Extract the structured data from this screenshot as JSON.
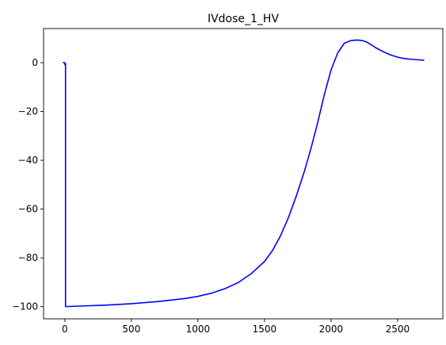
{
  "chart_data": {
    "type": "line",
    "title": "IVdose_1_HV",
    "xlabel": "",
    "ylabel": "",
    "xlim": [
      -160,
      2840
    ],
    "ylim": [
      -105,
      14
    ],
    "xticks": [
      0,
      500,
      1000,
      1500,
      2000,
      2500
    ],
    "yticks": [
      0,
      -20,
      -40,
      -60,
      -80,
      -100
    ],
    "grid": false,
    "series": [
      {
        "color": "#0000ff",
        "x": [
          -15,
          0,
          0,
          5,
          5,
          100,
          300,
          500,
          700,
          900,
          1000,
          1100,
          1200,
          1300,
          1400,
          1500,
          1560,
          1620,
          1680,
          1740,
          1800,
          1850,
          1900,
          1950,
          2000,
          2050,
          2100,
          2150,
          2200,
          2240,
          2270,
          2300,
          2340,
          2400,
          2450,
          2500,
          2550,
          2600,
          2650,
          2700
        ],
        "y": [
          0,
          0,
          -0.8,
          -0.5,
          -100,
          -99.8,
          -99.4,
          -98.8,
          -97.9,
          -96.7,
          -95.8,
          -94.5,
          -92.7,
          -90.2,
          -86.5,
          -81.5,
          -77,
          -71,
          -63.5,
          -54.5,
          -44.5,
          -35,
          -24.5,
          -13,
          -3,
          4,
          8,
          9.1,
          9.3,
          9,
          8.4,
          7.4,
          6,
          4.3,
          3.1,
          2.3,
          1.7,
          1.4,
          1.2,
          1.0
        ]
      }
    ]
  }
}
